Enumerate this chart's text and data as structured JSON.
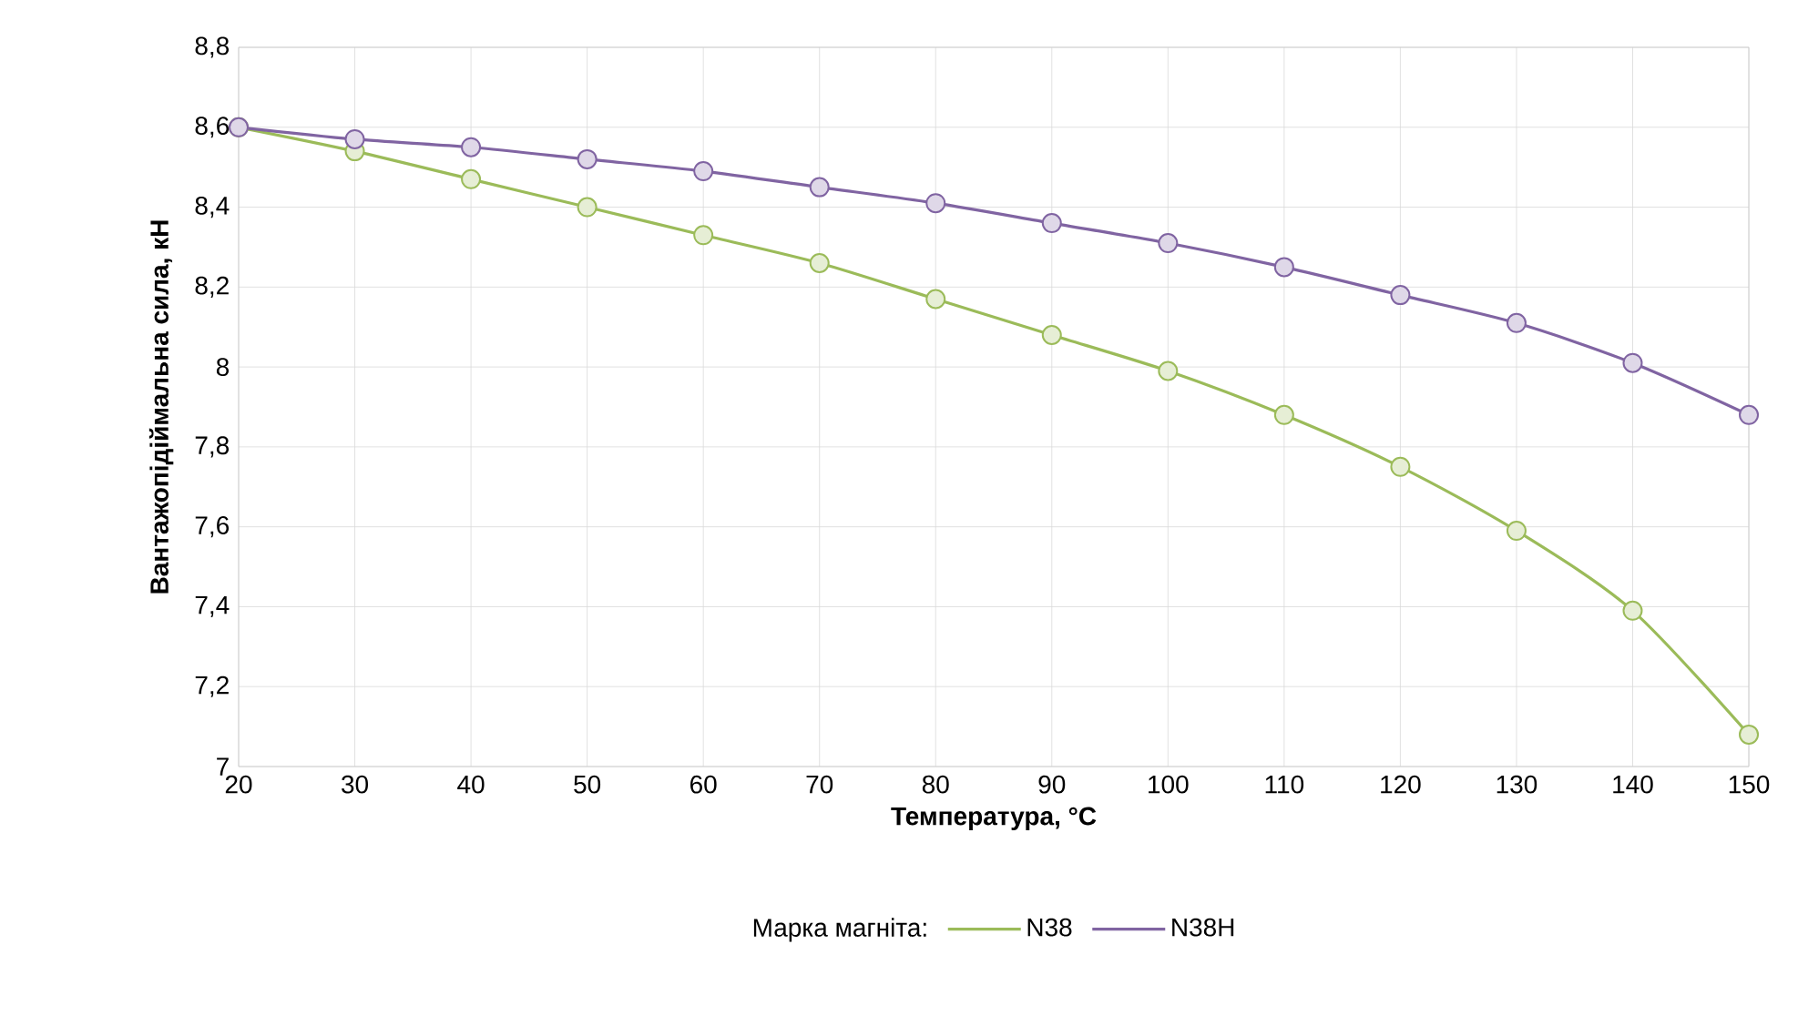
{
  "chart_data": {
    "type": "line",
    "xlabel": "Температура, °C",
    "ylabel": "Вантажопідіймальна сила, кН",
    "legend_title": "Марка магніта:",
    "x": [
      20,
      30,
      40,
      50,
      60,
      70,
      80,
      90,
      100,
      110,
      120,
      130,
      140,
      150
    ],
    "series": [
      {
        "name": "N38",
        "color": "#9bbb59",
        "values": [
          8.6,
          8.54,
          8.47,
          8.4,
          8.33,
          8.26,
          8.17,
          8.08,
          7.99,
          7.88,
          7.75,
          7.59,
          7.39,
          7.08
        ]
      },
      {
        "name": "N38H",
        "color": "#8064a2",
        "values": [
          8.6,
          8.57,
          8.55,
          8.52,
          8.49,
          8.45,
          8.41,
          8.36,
          8.31,
          8.25,
          8.18,
          8.11,
          8.01,
          7.88
        ]
      }
    ],
    "xlim": [
      20,
      150
    ],
    "xticks": [
      20,
      30,
      40,
      50,
      60,
      70,
      80,
      90,
      100,
      110,
      120,
      130,
      140,
      150
    ],
    "ylim": [
      7,
      8.8
    ],
    "yticks": [
      {
        "value": 7,
        "label": "7"
      },
      {
        "value": 7.2,
        "label": "7,2"
      },
      {
        "value": 7.4,
        "label": "7,4"
      },
      {
        "value": 7.6,
        "label": "7,6"
      },
      {
        "value": 7.8,
        "label": "7,8"
      },
      {
        "value": 8,
        "label": "8"
      },
      {
        "value": 8.2,
        "label": "8,2"
      },
      {
        "value": 8.4,
        "label": "8,4"
      },
      {
        "value": 8.6,
        "label": "8,6"
      },
      {
        "value": 8.8,
        "label": "8,8"
      }
    ],
    "grid": true,
    "legend": "bottom",
    "marker": "circle",
    "line_style": "solid"
  }
}
